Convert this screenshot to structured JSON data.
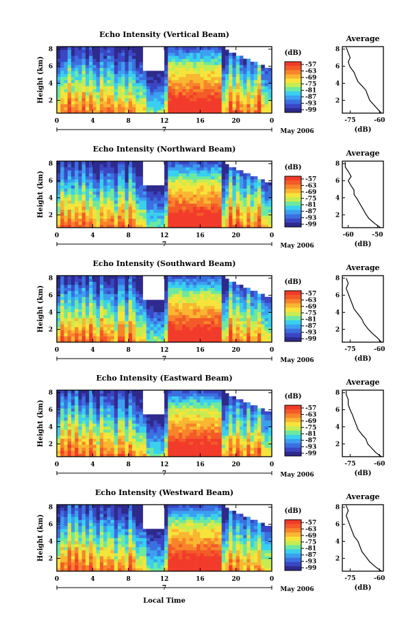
{
  "chart_data": [
    {
      "type": "heatmap",
      "title": "Echo Intensity (Vertical Beam)",
      "ylabel": "Height (km)",
      "xticks": [
        "0",
        "4",
        "8",
        "12",
        "16",
        "20",
        "0"
      ],
      "yticks": [
        "2",
        "4",
        "6",
        "8"
      ],
      "ylim": [
        0.5,
        8.3
      ],
      "colorbar": {
        "unit": "(dB)",
        "ticks": [
          "-57",
          "-63",
          "-69",
          "-75",
          "-81",
          "-87",
          "-93",
          "-99"
        ]
      },
      "average": {
        "title": "Average",
        "xlabel": "(dB)",
        "xticks": [
          "-75",
          "-60"
        ],
        "yticks": [
          "2",
          "4",
          "6",
          "8"
        ],
        "xlim": [
          -79,
          -58
        ],
        "profile": [
          [
            -59,
            0.5
          ],
          [
            -61,
            1.0
          ],
          [
            -63,
            1.5
          ],
          [
            -65,
            2.0
          ],
          [
            -66,
            2.6
          ],
          [
            -67,
            3.2
          ],
          [
            -69,
            3.7
          ],
          [
            -71,
            4.2
          ],
          [
            -72,
            4.7
          ],
          [
            -73,
            5.3
          ],
          [
            -75,
            5.9
          ],
          [
            -76,
            6.5
          ],
          [
            -75,
            7.0
          ],
          [
            -76,
            7.6
          ],
          [
            -77,
            8.2
          ]
        ]
      }
    },
    {
      "type": "heatmap",
      "title": "Echo Intensity (Northward Beam)",
      "ylabel": "Height (km)",
      "xticks": [
        "0",
        "4",
        "8",
        "12",
        "16",
        "20",
        "0"
      ],
      "yticks": [
        "2",
        "4",
        "6",
        "8"
      ],
      "ylim": [
        0.5,
        8.3
      ],
      "colorbar": {
        "unit": "(dB)",
        "ticks": [
          "-57",
          "-63",
          "-69",
          "-75",
          "-81",
          "-87",
          "-93",
          "-99"
        ]
      },
      "average": {
        "title": "Average",
        "xlabel": "(dB)",
        "xticks": [
          "-60",
          "-50"
        ],
        "yticks": [
          "2",
          "4",
          "6",
          "8"
        ],
        "xlim": [
          -62,
          -48
        ],
        "profile": [
          [
            -49,
            0.5
          ],
          [
            -51,
            1.0
          ],
          [
            -53,
            1.6
          ],
          [
            -54,
            2.1
          ],
          [
            -55,
            2.7
          ],
          [
            -56,
            3.3
          ],
          [
            -57,
            3.9
          ],
          [
            -58,
            4.4
          ],
          [
            -58,
            4.9
          ],
          [
            -59,
            5.4
          ],
          [
            -60,
            6.0
          ],
          [
            -59,
            6.5
          ],
          [
            -60,
            7.1
          ],
          [
            -61,
            7.6
          ],
          [
            -61,
            8.2
          ]
        ]
      }
    },
    {
      "type": "heatmap",
      "title": "Echo Intensity (Southward Beam)",
      "ylabel": "Height (km)",
      "xticks": [
        "0",
        "4",
        "8",
        "12",
        "16",
        "20",
        "0"
      ],
      "yticks": [
        "2",
        "4",
        "6",
        "8"
      ],
      "ylim": [
        0.5,
        8.3
      ],
      "colorbar": {
        "unit": "(dB)",
        "ticks": [
          "-57",
          "-63",
          "-69",
          "-75",
          "-81",
          "-87",
          "-93",
          "-99"
        ]
      },
      "average": {
        "title": "Average",
        "xlabel": "(dB)",
        "xticks": [
          "-75",
          "-60"
        ],
        "yticks": [
          "2",
          "4",
          "6",
          "8"
        ],
        "xlim": [
          -79,
          -58
        ],
        "profile": [
          [
            -59,
            0.5
          ],
          [
            -61,
            1.0
          ],
          [
            -64,
            1.6
          ],
          [
            -66,
            2.1
          ],
          [
            -68,
            2.7
          ],
          [
            -69,
            3.2
          ],
          [
            -71,
            3.8
          ],
          [
            -73,
            4.4
          ],
          [
            -74,
            5.0
          ],
          [
            -75,
            5.6
          ],
          [
            -76,
            6.2
          ],
          [
            -77,
            6.8
          ],
          [
            -76,
            7.4
          ],
          [
            -77,
            8.0
          ]
        ]
      }
    },
    {
      "type": "heatmap",
      "title": "Echo Intensity (Eastward Beam)",
      "ylabel": "Height (km)",
      "xticks": [
        "0",
        "4",
        "8",
        "12",
        "16",
        "20",
        "0"
      ],
      "yticks": [
        "2",
        "4",
        "6",
        "8"
      ],
      "ylim": [
        0.5,
        8.3
      ],
      "colorbar": {
        "unit": "(dB)",
        "ticks": [
          "-57",
          "-63",
          "-69",
          "-75",
          "-81",
          "-87",
          "-93",
          "-99"
        ]
      },
      "average": {
        "title": "Average",
        "xlabel": "(dB)",
        "xticks": [
          "-75",
          "-60"
        ],
        "yticks": [
          "2",
          "4",
          "6",
          "8"
        ],
        "xlim": [
          -79,
          -58
        ],
        "profile": [
          [
            -59,
            0.5
          ],
          [
            -62,
            1.0
          ],
          [
            -64,
            1.5
          ],
          [
            -66,
            2.0
          ],
          [
            -67,
            2.6
          ],
          [
            -69,
            3.1
          ],
          [
            -71,
            3.7
          ],
          [
            -72,
            4.3
          ],
          [
            -73,
            4.9
          ],
          [
            -74,
            5.5
          ],
          [
            -75,
            6.0
          ],
          [
            -76,
            6.6
          ],
          [
            -76,
            7.2
          ],
          [
            -77,
            7.8
          ],
          [
            -77,
            8.2
          ]
        ]
      }
    },
    {
      "type": "heatmap",
      "title": "Echo Intensity (Westward Beam)",
      "ylabel": "Height (km)",
      "xticks": [
        "0",
        "4",
        "8",
        "12",
        "16",
        "20",
        "0"
      ],
      "yticks": [
        "2",
        "4",
        "6",
        "8"
      ],
      "ylim": [
        0.5,
        8.3
      ],
      "colorbar": {
        "unit": "(dB)",
        "ticks": [
          "-57",
          "-63",
          "-69",
          "-75",
          "-81",
          "-87",
          "-93",
          "-99"
        ]
      },
      "average": {
        "title": "Average",
        "xlabel": "(dB)",
        "xticks": [
          "-75",
          "-60"
        ],
        "yticks": [
          "2",
          "4",
          "6",
          "8"
        ],
        "xlim": [
          -79,
          -58
        ],
        "profile": [
          [
            -59,
            0.5
          ],
          [
            -62,
            1.0
          ],
          [
            -65,
            1.6
          ],
          [
            -67,
            2.2
          ],
          [
            -69,
            2.8
          ],
          [
            -70,
            3.4
          ],
          [
            -71,
            4.0
          ],
          [
            -73,
            4.6
          ],
          [
            -74,
            5.2
          ],
          [
            -75,
            5.8
          ],
          [
            -76,
            6.4
          ],
          [
            -77,
            7.0
          ],
          [
            -76,
            7.6
          ],
          [
            -77,
            8.2
          ]
        ]
      }
    }
  ],
  "date_axis": {
    "day": "7",
    "month_label": "May 2006"
  },
  "xlabel": "Local Time",
  "colormap": [
    "#2e2a8c",
    "#3b46c4",
    "#3b6fe0",
    "#3c9ff0",
    "#39d0ee",
    "#6de8a0",
    "#c6ec52",
    "#f6e43a",
    "#f9b631",
    "#f7842a",
    "#f35a28",
    "#f23b2a"
  ]
}
